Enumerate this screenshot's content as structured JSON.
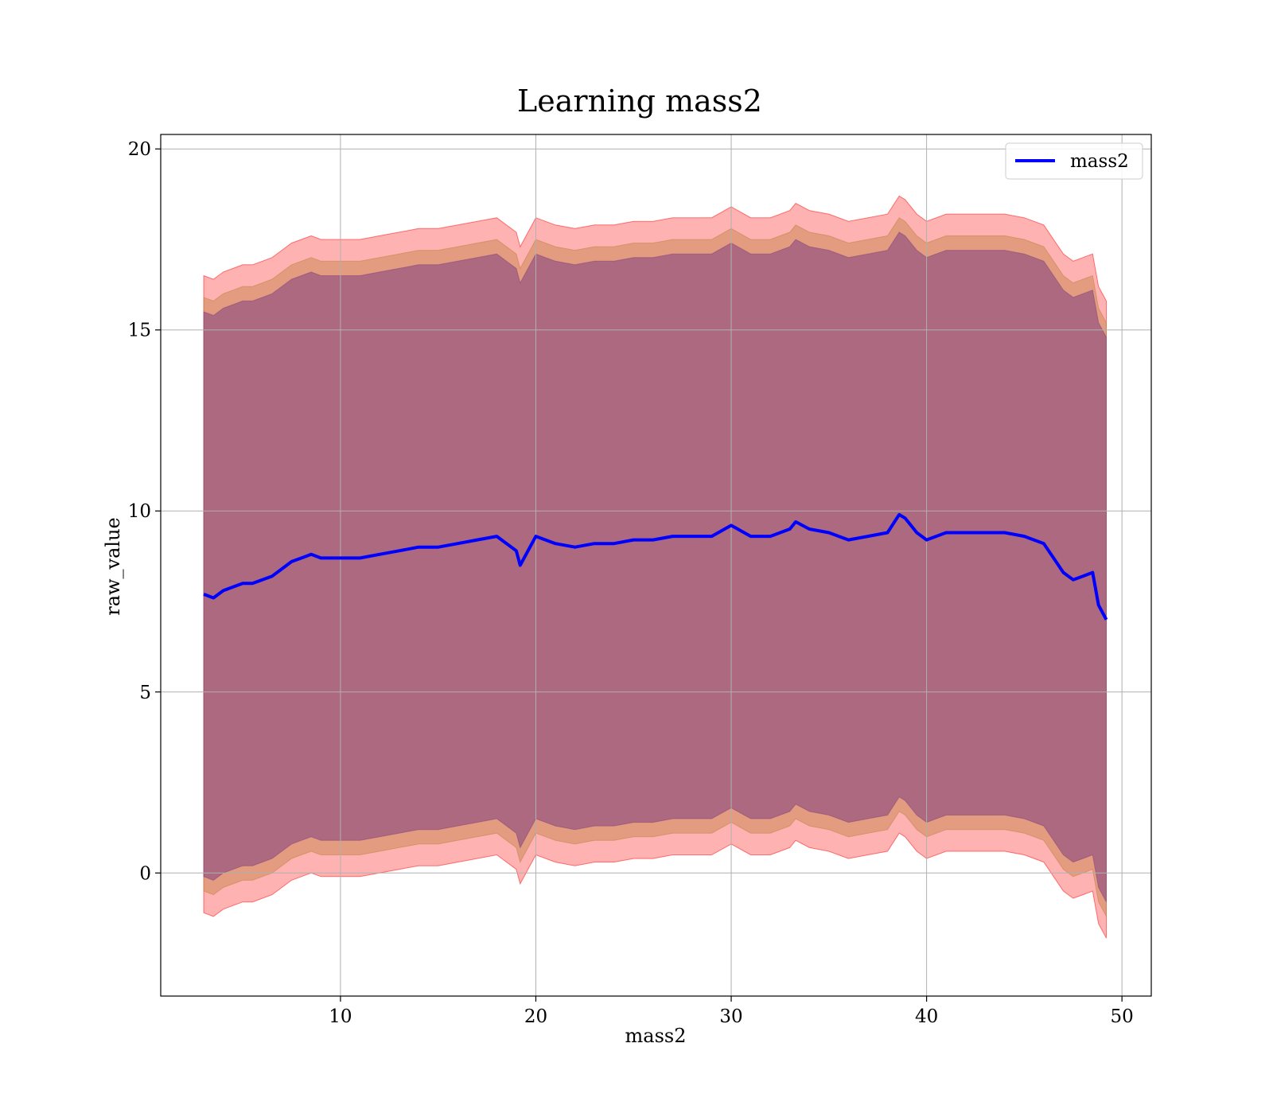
{
  "chart_data": {
    "type": "line",
    "title": "Learning mass2",
    "xlabel": "mass2",
    "ylabel": "raw_value",
    "xlim": [
      0.8,
      51.5
    ],
    "ylim": [
      -3.4,
      20.4
    ],
    "xticks": [
      10,
      20,
      30,
      40,
      50
    ],
    "yticks": [
      0,
      5,
      10,
      15,
      20
    ],
    "grid": true,
    "legend": {
      "position": "top-right",
      "entries": [
        "mass2"
      ]
    },
    "colors": {
      "line": "#0000ff",
      "band_outer": "#ff0000",
      "band_middle": "#c08040",
      "band_inner": "#804080",
      "grid": "#b0b0b0"
    },
    "series": [
      {
        "name": "mass2",
        "x": [
          3,
          3.5,
          4,
          4.5,
          5,
          5.5,
          6,
          6.5,
          7,
          7.5,
          8,
          8.5,
          9,
          9.5,
          10,
          11,
          12,
          13,
          14,
          15,
          16,
          17,
          18,
          19,
          19.2,
          20,
          21,
          22,
          23,
          24,
          25,
          26,
          27,
          28,
          29,
          30,
          31,
          32,
          33,
          33.3,
          34,
          35,
          36,
          37,
          38,
          38.6,
          38.9,
          39.5,
          40,
          41,
          42,
          43,
          44,
          45,
          46,
          46.5,
          47,
          47.5,
          48,
          48.5,
          48.8,
          49.2
        ],
        "y": [
          7.7,
          7.6,
          7.8,
          7.9,
          8.0,
          8.0,
          8.1,
          8.2,
          8.4,
          8.6,
          8.7,
          8.8,
          8.7,
          8.7,
          8.7,
          8.7,
          8.8,
          8.9,
          9.0,
          9.0,
          9.1,
          9.2,
          9.3,
          8.9,
          8.5,
          9.3,
          9.1,
          9.0,
          9.1,
          9.1,
          9.2,
          9.2,
          9.3,
          9.3,
          9.3,
          9.6,
          9.3,
          9.3,
          9.5,
          9.7,
          9.5,
          9.4,
          9.2,
          9.3,
          9.4,
          9.9,
          9.8,
          9.4,
          9.2,
          9.4,
          9.4,
          9.4,
          9.4,
          9.3,
          9.1,
          8.7,
          8.3,
          8.1,
          8.2,
          8.3,
          7.4,
          7.0
        ]
      }
    ],
    "bands": [
      {
        "offset": 8.8,
        "color": "#ff0000",
        "opacity": 0.3
      },
      {
        "offset": 8.2,
        "color": "#c08040",
        "opacity": 0.45
      },
      {
        "offset": 7.8,
        "color": "#804080",
        "opacity": 0.55
      }
    ]
  }
}
